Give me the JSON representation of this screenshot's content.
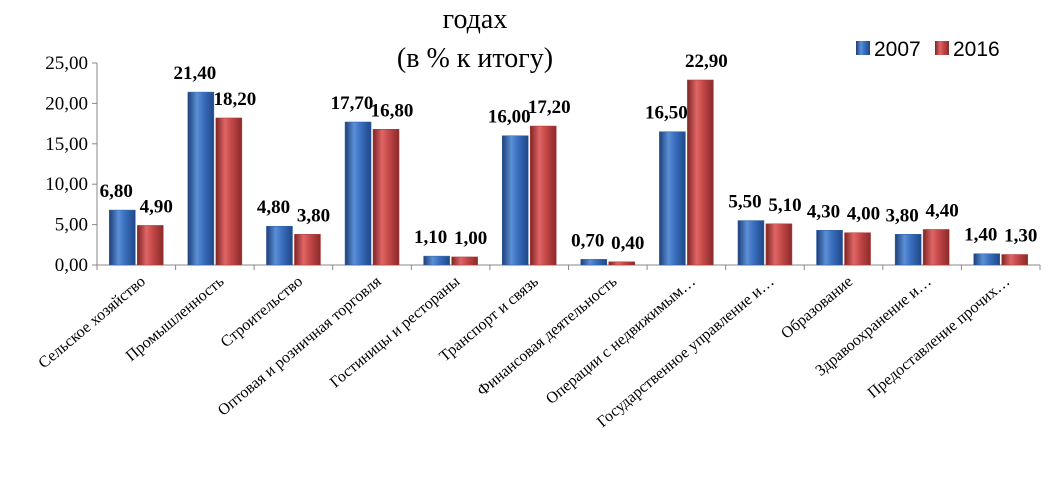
{
  "chart_data": {
    "type": "bar",
    "title_lines": [
      "годах",
      "(в % к итогу)"
    ],
    "categories": [
      "Сельское хозяйство",
      "Промышленность",
      "Строительство",
      "Оптовая и розничная торговля",
      "Гостиницы и рестораны",
      "Транспорт и связь",
      "Финансовая деятельность",
      "Операции с недвижимым…",
      "Государственное управление и…",
      "Образование",
      "Здравоохранение и…",
      "Предоставление прочих…"
    ],
    "series": [
      {
        "name": "2007",
        "color": "#2E5FA8",
        "values": [
          6.8,
          21.4,
          4.8,
          17.7,
          1.1,
          16.0,
          0.7,
          16.5,
          5.5,
          4.3,
          3.8,
          1.4
        ],
        "labels": [
          "6,80",
          "21,40",
          "4,80",
          "17,70",
          "1,10",
          "16,00",
          "0,70",
          "16,50",
          "5,50",
          "4,30",
          "3,80",
          "1,40"
        ]
      },
      {
        "name": "2016",
        "color": "#B23A3A",
        "values": [
          4.9,
          18.2,
          3.8,
          16.8,
          1.0,
          17.2,
          0.4,
          22.9,
          5.1,
          4.0,
          4.4,
          1.3
        ],
        "labels": [
          "4,90",
          "18,20",
          "3,80",
          "16,80",
          "1,00",
          "17,20",
          "0,40",
          "22,90",
          "5,10",
          "4,00",
          "4,40",
          "1,30"
        ]
      }
    ],
    "ylim": [
      0,
      25
    ],
    "yticks": [
      0,
      5,
      10,
      15,
      20,
      25
    ],
    "ytick_labels": [
      "0,00",
      "5,00",
      "10,00",
      "15,00",
      "20,00",
      "25,00"
    ],
    "legend_position": "top-right",
    "grid": false
  }
}
